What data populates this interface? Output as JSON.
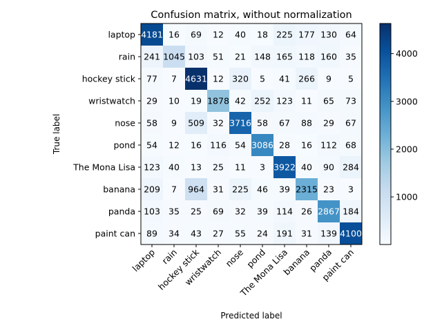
{
  "chart_data": {
    "type": "heatmap",
    "title": "Confusion matrix, without normalization",
    "xlabel": "Predicted label",
    "ylabel": "True label",
    "row_labels": [
      "laptop",
      "rain",
      "hockey stick",
      "wristwatch",
      "nose",
      "pond",
      "The Mona Lisa",
      "banana",
      "panda",
      "paint can"
    ],
    "col_labels": [
      "laptop",
      "rain",
      "hockey stick",
      "wristwatch",
      "nose",
      "pond",
      "The Mona Lisa",
      "banana",
      "panda",
      "paint can"
    ],
    "values": [
      [
        4181,
        16,
        69,
        12,
        40,
        18,
        225,
        177,
        130,
        64
      ],
      [
        241,
        1045,
        103,
        51,
        21,
        148,
        165,
        118,
        160,
        35
      ],
      [
        77,
        7,
        4631,
        12,
        320,
        5,
        41,
        266,
        9,
        5
      ],
      [
        29,
        10,
        19,
        1878,
        42,
        252,
        123,
        11,
        65,
        73
      ],
      [
        58,
        9,
        509,
        32,
        3716,
        58,
        67,
        88,
        29,
        67
      ],
      [
        54,
        12,
        16,
        116,
        54,
        3086,
        28,
        16,
        112,
        68
      ],
      [
        123,
        40,
        13,
        25,
        11,
        3,
        3922,
        40,
        90,
        284
      ],
      [
        209,
        7,
        964,
        31,
        225,
        46,
        39,
        2315,
        23,
        3
      ],
      [
        103,
        35,
        25,
        69,
        32,
        39,
        114,
        26,
        2867,
        184
      ],
      [
        89,
        34,
        43,
        27,
        55,
        24,
        191,
        31,
        139,
        4100
      ]
    ],
    "colormap": "Blues",
    "colorbar_ticks": [
      1000,
      2000,
      3000,
      4000
    ],
    "value_range": [
      3,
      4631
    ]
  }
}
